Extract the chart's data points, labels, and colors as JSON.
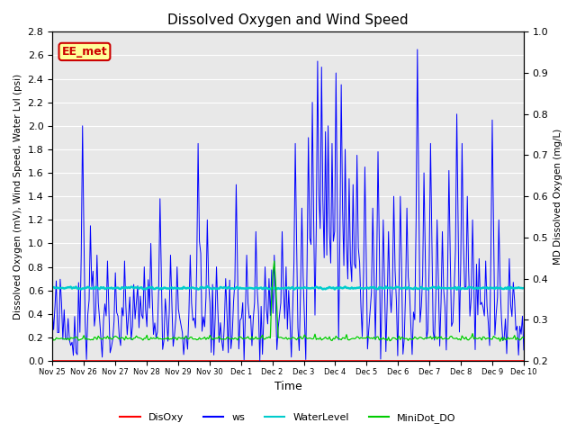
{
  "title": "Dissolved Oxygen and Wind Speed",
  "ylabel_left": "Dissolved Oxygen (mV), Wind Speed, Water Lvl (psi)",
  "ylabel_right": "MD Dissolved Oxygen (mg/L)",
  "xlabel": "Time",
  "ylim_left": [
    0.0,
    2.8
  ],
  "ylim_right": [
    0.2,
    1.0
  ],
  "annotation_text": "EE_met",
  "annotation_box_color": "#FFFF99",
  "annotation_box_edge": "#CC0000",
  "bg_color": "#E8E8E8",
  "grid_color": "#FFFFFF",
  "disoxy_color": "#FF0000",
  "ws_color": "#0000FF",
  "waterlevel_color": "#00CCCC",
  "minidot_color": "#00CC00",
  "disoxy_value": 0.0,
  "waterlevel_value": 0.62,
  "minidot_value": 0.19,
  "num_points": 360,
  "tick_labels": [
    "Nov 25",
    "Nov 26",
    "Nov 27",
    "Nov 28",
    "Nov 29",
    "Nov 30",
    "Dec 1",
    "Dec 2",
    "Dec 3",
    "Dec 4",
    "Dec 5",
    "Dec 6",
    "Dec 7",
    "Dec 8",
    "Dec 9",
    "Dec 10"
  ],
  "ws_yticks": [
    0.0,
    0.2,
    0.4,
    0.6,
    0.8,
    1.0,
    1.2,
    1.4,
    1.6,
    1.8,
    2.0,
    2.2,
    2.4,
    2.6,
    2.8
  ],
  "do_yticks": [
    0.2,
    0.3,
    0.4,
    0.5,
    0.6,
    0.7,
    0.8,
    0.9,
    1.0
  ]
}
